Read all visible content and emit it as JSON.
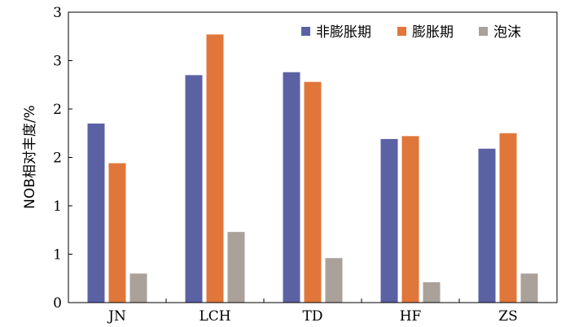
{
  "chart_data": {
    "type": "bar",
    "ylabel": "NOB相对丰度/%",
    "ylim": [
      0,
      3
    ],
    "yticks": [
      0,
      0.5,
      1,
      1.5,
      2,
      2.5,
      3
    ],
    "ytick_labels": [
      "0",
      "1",
      "1",
      "2",
      "2",
      "3",
      "3"
    ],
    "categories": [
      "JN",
      "LCH",
      "TD",
      "HF",
      "ZS"
    ],
    "series": [
      {
        "name": "非膨胀期",
        "color": "#5b62a3",
        "values": [
          1.85,
          2.35,
          2.38,
          1.69,
          1.59
        ]
      },
      {
        "name": "膨胀期",
        "color": "#e0763a",
        "values": [
          1.44,
          2.77,
          2.28,
          1.72,
          1.75
        ]
      },
      {
        "name": "泡沫",
        "color": "#aaa19a",
        "values": [
          0.3,
          0.73,
          0.46,
          0.21,
          0.3
        ]
      }
    ],
    "legend_position": "top-right",
    "grid": false
  }
}
